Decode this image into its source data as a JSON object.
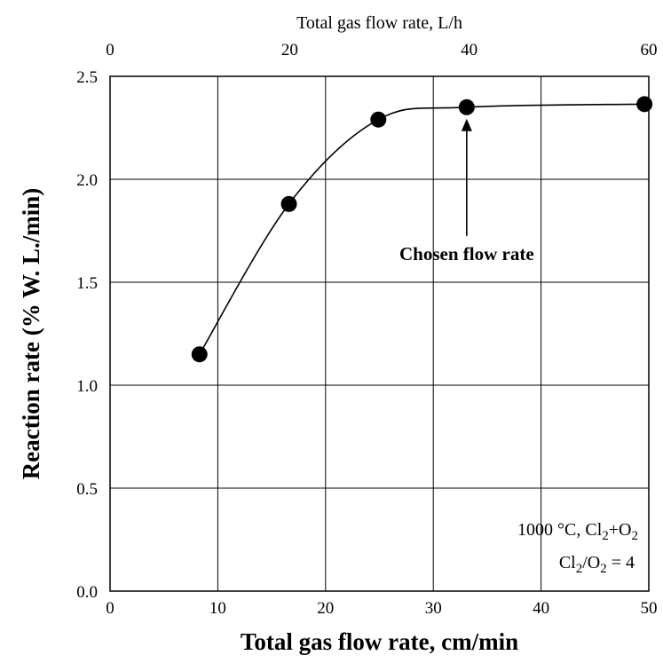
{
  "chart_data": {
    "type": "scatter",
    "xlabel": "Total gas flow rate, cm/min",
    "ylabel": "Reaction rate (% W. L./min)",
    "top_xlabel": "Total gas flow rate, L/h",
    "xlim": [
      0,
      50
    ],
    "ylim": [
      0,
      2.5
    ],
    "x_ticks": [
      "0",
      "10",
      "20",
      "30",
      "40",
      "50"
    ],
    "y_ticks": [
      "0.0",
      "0.5",
      "1.0",
      "1.5",
      "2.0",
      "2.5"
    ],
    "top_ticks": [
      {
        "label": "0",
        "value": 0
      },
      {
        "label": "20",
        "value": 20
      },
      {
        "label": "40",
        "value": 40
      },
      {
        "label": "60",
        "value": 60
      }
    ],
    "top_xlim": [
      0,
      60
    ],
    "grid": true,
    "series": [
      {
        "x": [
          8.3,
          16.6,
          24.9,
          33.1,
          49.6
        ],
        "y": [
          1.15,
          1.88,
          2.29,
          2.35,
          2.365
        ],
        "fit_curve": true
      }
    ],
    "annotation": {
      "text": "Chosen flow rate",
      "x": 33.1,
      "y": 2.35
    },
    "conditions": {
      "line1": {
        "text1": "1000 °C, Cl",
        "sub1": "2",
        "text2": "+O",
        "sub2": "2"
      },
      "line2": {
        "text1": "Cl",
        "sub1": "2",
        "text2": "/O",
        "sub2": "2",
        "text3": " = 4"
      }
    }
  }
}
